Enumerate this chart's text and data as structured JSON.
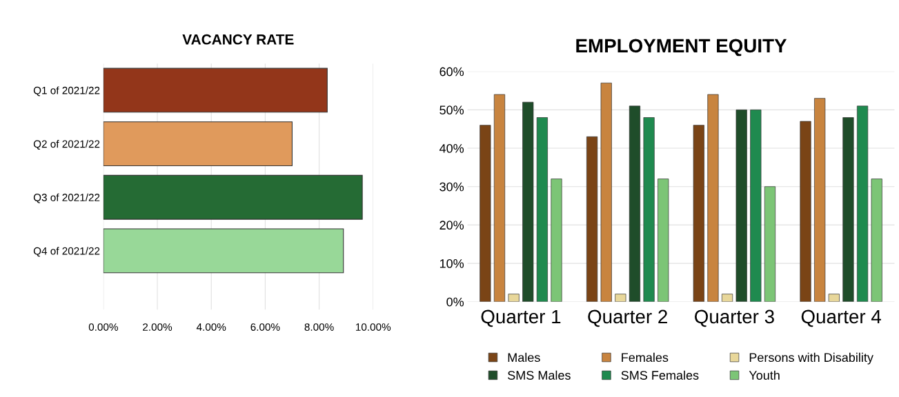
{
  "chart_data": [
    {
      "type": "bar",
      "title": "VACANCY RATE",
      "orientation": "horizontal",
      "categories": [
        "Q1 of 2021/22",
        "Q2 of 2021/22",
        "Q3 of 2021/22",
        "Q4 of 2021/22"
      ],
      "values": [
        8.3,
        7.0,
        9.6,
        8.9
      ],
      "colors": [
        "#93361a",
        "#e09a5c",
        "#256b34",
        "#98d898"
      ],
      "xlim": [
        0,
        10
      ],
      "xticks": [
        {
          "value": 0,
          "label": "0.00%"
        },
        {
          "value": 2,
          "label": "2.00%"
        },
        {
          "value": 4,
          "label": "4.00%"
        },
        {
          "value": 6,
          "label": "6.00%"
        },
        {
          "value": 8,
          "label": "8.00%"
        },
        {
          "value": 10,
          "label": "10.00%"
        }
      ],
      "grid": "x",
      "legend": false
    },
    {
      "type": "bar",
      "title": "EMPLOYMENT EQUITY",
      "categories": [
        "Quarter 1",
        "Quarter 2",
        "Quarter 3",
        "Quarter 4"
      ],
      "series": [
        {
          "name": "Males",
          "color": "#7a4416",
          "values": [
            46,
            43,
            46,
            47
          ]
        },
        {
          "name": "Females",
          "color": "#c8843f",
          "values": [
            54,
            57,
            54,
            53
          ]
        },
        {
          "name": "Persons with Disability",
          "color": "#e8d79a",
          "values": [
            2,
            2,
            2,
            2
          ]
        },
        {
          "name": "SMS Males",
          "color": "#1f4d2a",
          "values": [
            52,
            51,
            50,
            48
          ]
        },
        {
          "name": "SMS Females",
          "color": "#1f8a4f",
          "values": [
            48,
            48,
            50,
            51
          ]
        },
        {
          "name": "Youth",
          "color": "#7cc576",
          "values": [
            32,
            32,
            30,
            32
          ]
        }
      ],
      "ylim": [
        0,
        60
      ],
      "yticks": [
        {
          "value": 0,
          "label": "0%"
        },
        {
          "value": 10,
          "label": "10%"
        },
        {
          "value": 20,
          "label": "20%"
        },
        {
          "value": 30,
          "label": "30%"
        },
        {
          "value": 40,
          "label": "40%"
        },
        {
          "value": 50,
          "label": "50%"
        },
        {
          "value": 60,
          "label": "60%"
        }
      ],
      "grid": "y",
      "legend": "bottom"
    }
  ]
}
